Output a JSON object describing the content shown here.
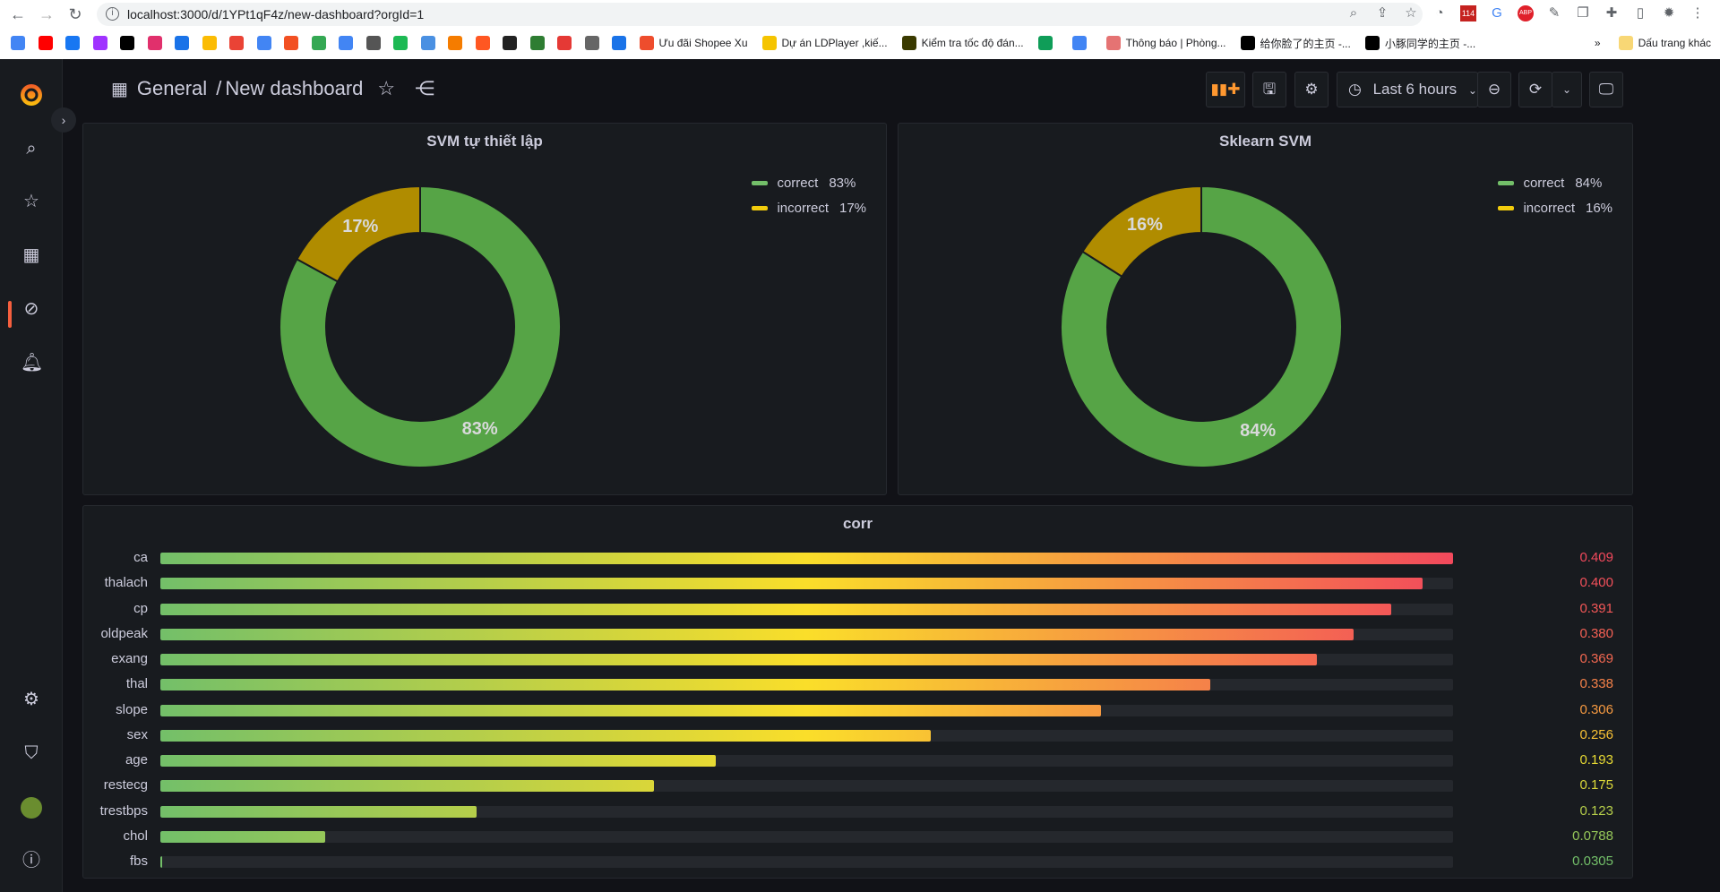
{
  "browser": {
    "url": "localhost:3000/d/1YPt1qF4z/new-dashboard?orgId=1",
    "bookmark_icons": [
      "#4285f4",
      "#ff0000",
      "#1877f2",
      "#a033ff",
      "#000000",
      "#e1306c",
      "#1a73e8",
      "#fbbc04",
      "#ea4335",
      "#4285f4",
      "#f25022",
      "#34a853",
      "#4285f4",
      "#555555",
      "#1db954",
      "#4a90e2",
      "#f57c00",
      "#ff5722",
      "#222222",
      "#2e7d32",
      "#e53935",
      "#666666",
      "#1a73e8"
    ],
    "bookmarks": [
      {
        "label": "Ưu đãi Shopee Xu",
        "color": "#ee4d2d"
      },
      {
        "label": "Dự án LDPlayer ,kiế...",
        "color": "#f5c400"
      },
      {
        "label": "Kiểm tra tốc độ đán...",
        "color": "#3a3a00"
      },
      {
        "label": "",
        "color": "#0f9d58"
      },
      {
        "label": "",
        "color": "#4285f4"
      },
      {
        "label": "Thông báo | Phòng...",
        "color": "#e57373"
      },
      {
        "label": "给你脸了的主页 -...",
        "color": "#000000"
      },
      {
        "label": "小豚同学的主页 -...",
        "color": "#000000"
      }
    ],
    "other_bookmarks": "Dấu trang khác",
    "overflow": "»",
    "gmail_badge": "114"
  },
  "header": {
    "breadcrumb_root": "General",
    "separator": "/",
    "dashboard_title": "New dashboard",
    "time_range": "Last 6 hours"
  },
  "panels": [
    {
      "title": "SVM tự thiết lập",
      "legend": [
        {
          "name": "correct",
          "value": "83%",
          "color": "#73bf69"
        },
        {
          "name": "incorrect",
          "value": "17%",
          "color": "#f2cc0c"
        }
      ],
      "slices": [
        83,
        17
      ],
      "labels": [
        "83%",
        "17%"
      ]
    },
    {
      "title": "Sklearn SVM",
      "legend": [
        {
          "name": "correct",
          "value": "84%",
          "color": "#73bf69"
        },
        {
          "name": "incorrect",
          "value": "16%",
          "color": "#f2cc0c"
        }
      ],
      "slices": [
        84,
        16
      ],
      "labels": [
        "84%",
        "16%"
      ]
    }
  ],
  "corr": {
    "title": "corr",
    "rows": [
      {
        "label": "ca",
        "value": "0.409"
      },
      {
        "label": "thalach",
        "value": "0.400"
      },
      {
        "label": "cp",
        "value": "0.391"
      },
      {
        "label": "oldpeak",
        "value": "0.380"
      },
      {
        "label": "exang",
        "value": "0.369"
      },
      {
        "label": "thal",
        "value": "0.338"
      },
      {
        "label": "slope",
        "value": "0.306"
      },
      {
        "label": "sex",
        "value": "0.256"
      },
      {
        "label": "age",
        "value": "0.193"
      },
      {
        "label": "restecg",
        "value": "0.175"
      },
      {
        "label": "trestbps",
        "value": "0.123"
      },
      {
        "label": "chol",
        "value": "0.0788"
      },
      {
        "label": "fbs",
        "value": "0.0305"
      }
    ],
    "gradient": [
      "#73bf69",
      "#fade2a",
      "#f2495c"
    ]
  }
}
